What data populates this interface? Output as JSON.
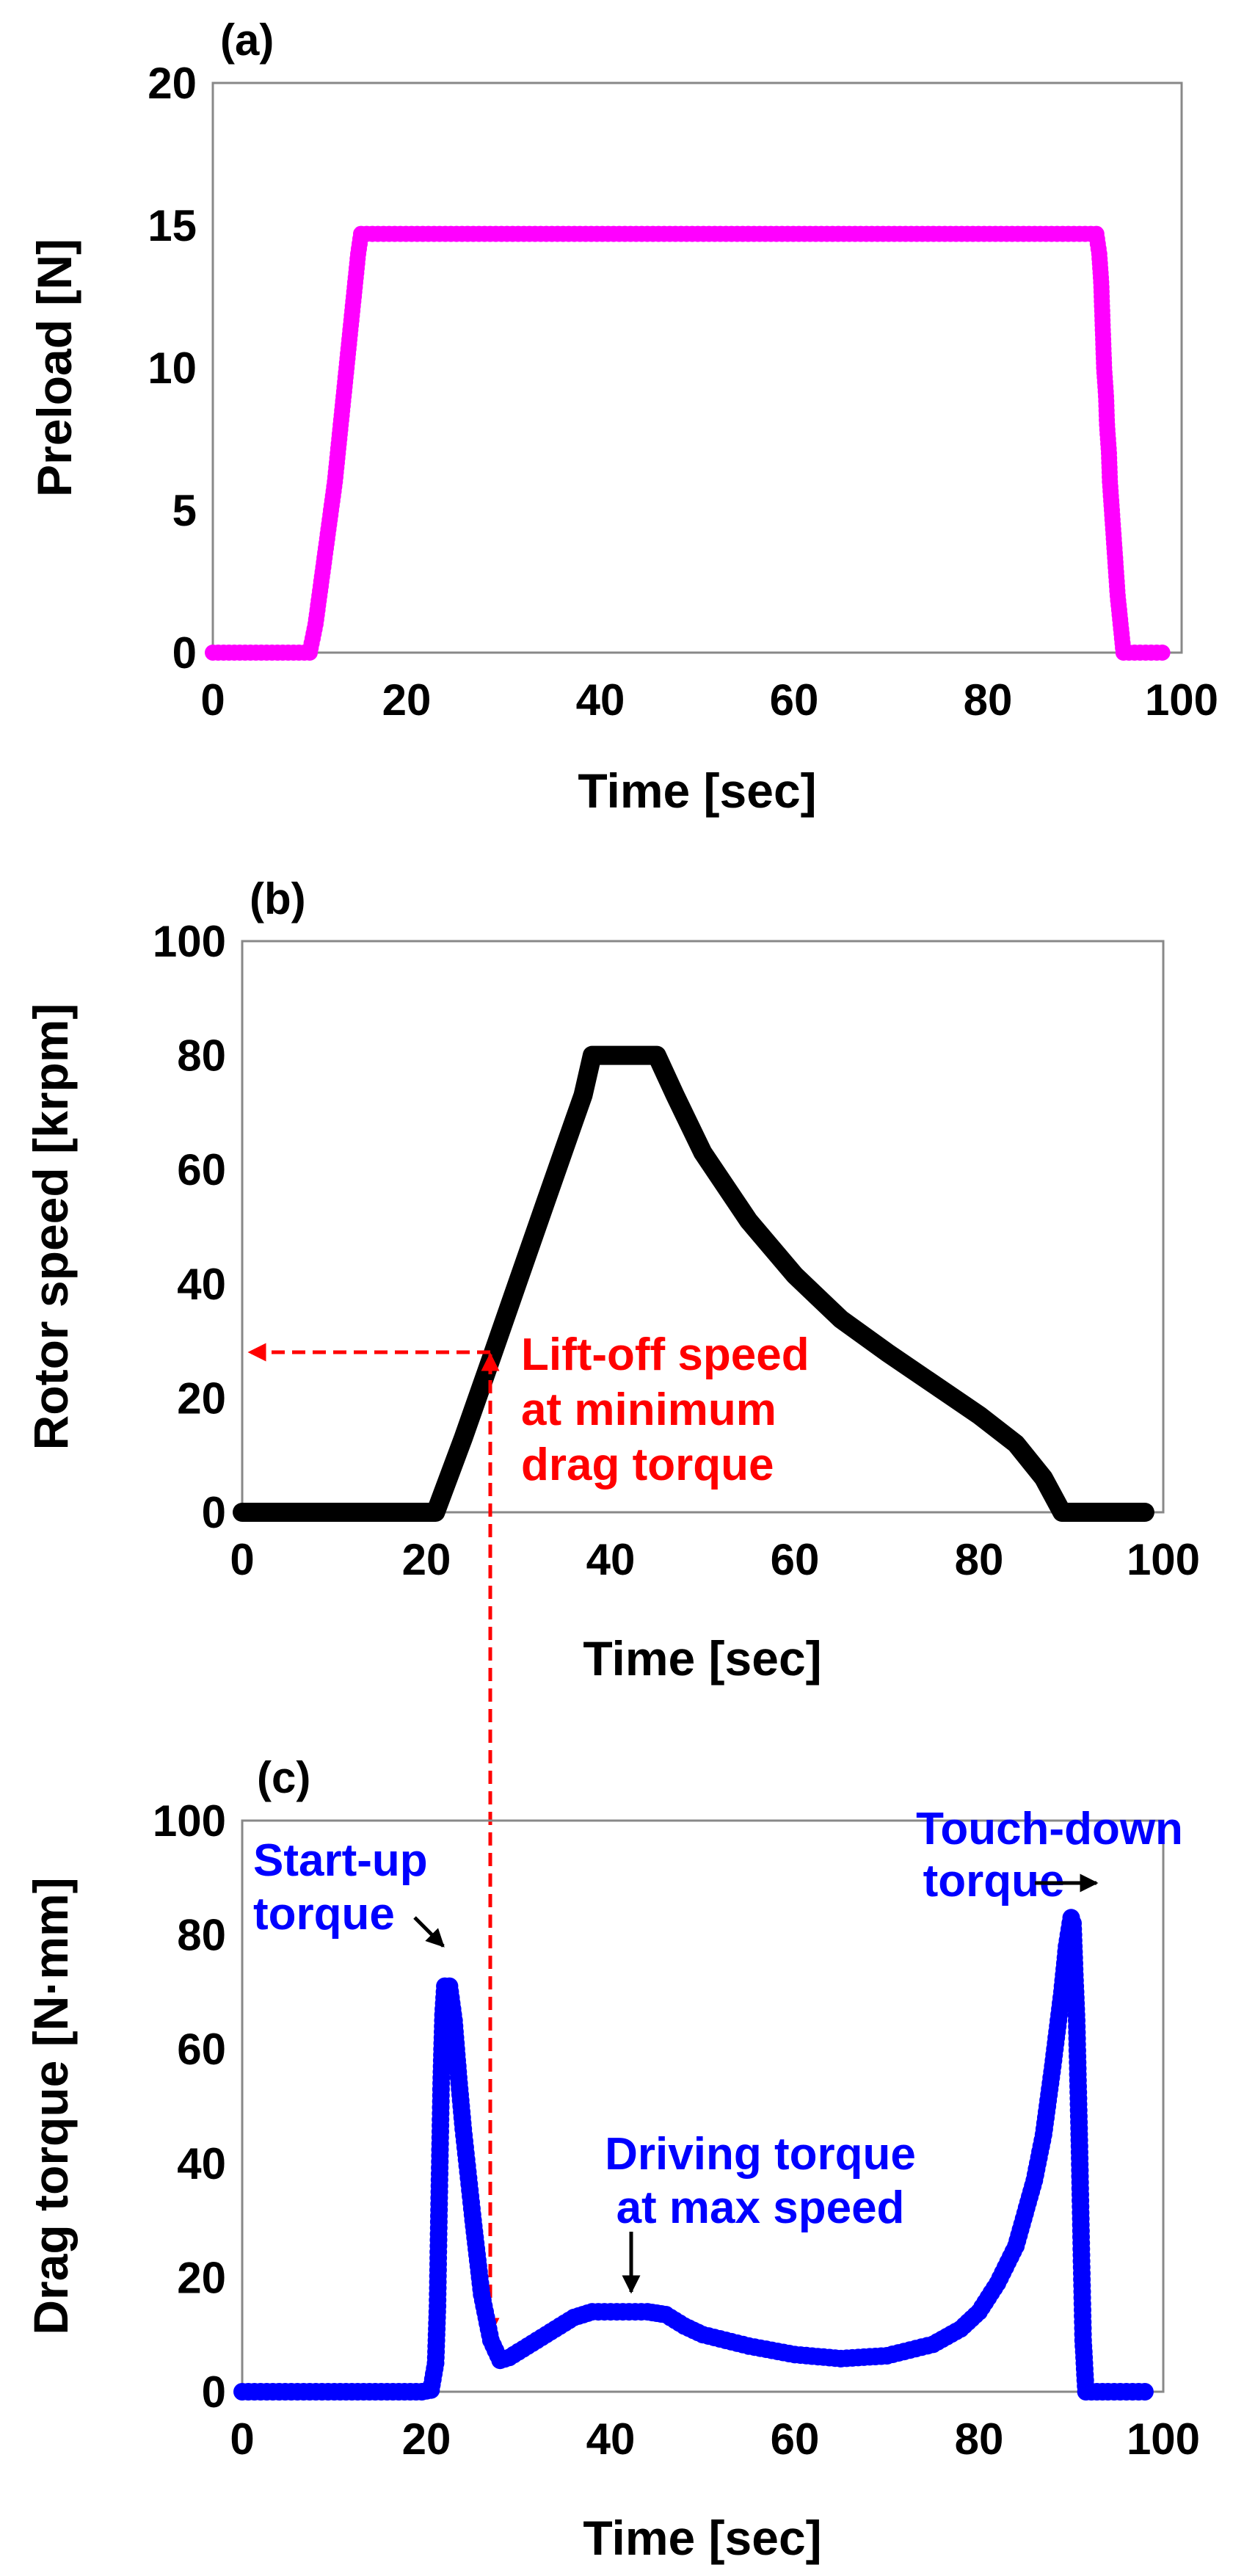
{
  "chart_data": [
    {
      "panel": "(a)",
      "type": "scatter",
      "xlabel": "Time [sec]",
      "ylabel": "Preload [N]",
      "xlim": [
        0,
        100
      ],
      "ylim": [
        0,
        20
      ],
      "xticks": [
        "0",
        "20",
        "40",
        "60",
        "80",
        "100"
      ],
      "yticks": [
        "0",
        "5",
        "10",
        "15",
        "20"
      ],
      "grid": false,
      "series": [
        {
          "name": "Preload",
          "color": "#ff00ff",
          "points": [
            [
              0,
              0
            ],
            [
              10,
              0
            ],
            [
              10.6,
              1
            ],
            [
              11,
              2
            ],
            [
              11.4,
              3
            ],
            [
              11.8,
              4
            ],
            [
              12.2,
              5
            ],
            [
              12.6,
              6
            ],
            [
              12.9,
              7
            ],
            [
              13.2,
              8
            ],
            [
              13.5,
              9
            ],
            [
              13.8,
              10
            ],
            [
              14.1,
              11
            ],
            [
              14.4,
              12
            ],
            [
              14.7,
              13
            ],
            [
              15,
              14
            ],
            [
              15.3,
              14.7
            ],
            [
              91.2,
              14.7
            ],
            [
              91.5,
              14
            ],
            [
              91.7,
              13
            ],
            [
              91.8,
              12
            ],
            [
              91.9,
              11
            ],
            [
              92,
              10
            ],
            [
              92.2,
              9
            ],
            [
              92.3,
              8
            ],
            [
              92.5,
              7
            ],
            [
              92.6,
              6
            ],
            [
              92.8,
              5
            ],
            [
              93,
              4
            ],
            [
              93.2,
              3
            ],
            [
              93.4,
              2
            ],
            [
              93.7,
              1
            ],
            [
              94,
              0
            ],
            [
              98,
              0
            ]
          ]
        }
      ]
    },
    {
      "panel": "(b)",
      "type": "line",
      "xlabel": "Time [sec]",
      "ylabel": "Rotor speed [krpm]",
      "xlim": [
        0,
        100
      ],
      "ylim": [
        0,
        100
      ],
      "xticks": [
        "0",
        "20",
        "40",
        "60",
        "80",
        "100"
      ],
      "yticks": [
        "0",
        "20",
        "40",
        "60",
        "80",
        "100"
      ],
      "grid": false,
      "series": [
        {
          "name": "Rotor speed",
          "color": "#000000",
          "points": [
            [
              0,
              0
            ],
            [
              21,
              0
            ],
            [
              24,
              13
            ],
            [
              27,
              26.8
            ],
            [
              30,
              40.7
            ],
            [
              33,
              54.6
            ],
            [
              36,
              68.4
            ],
            [
              37,
              73
            ],
            [
              38,
              80
            ],
            [
              45,
              80
            ],
            [
              47,
              73
            ],
            [
              50,
              63
            ],
            [
              55,
              51
            ],
            [
              60,
              41.5
            ],
            [
              65,
              33.8
            ],
            [
              70,
              28
            ],
            [
              75,
              22.5
            ],
            [
              80,
              17
            ],
            [
              84,
              12
            ],
            [
              87,
              6
            ],
            [
              89,
              0
            ],
            [
              98,
              0
            ]
          ]
        }
      ],
      "annotations": [
        {
          "text_lines": [
            "Lift-off speed",
            "at minimum",
            "drag torque"
          ],
          "color": "#ff0000",
          "x": 27,
          "y": 28.5
        }
      ]
    },
    {
      "panel": "(c)",
      "type": "scatter",
      "xlabel": "Time [sec]",
      "ylabel": "Drag torque [N·mm]",
      "xlim": [
        0,
        100
      ],
      "ylim": [
        0,
        100
      ],
      "xticks": [
        "0",
        "20",
        "40",
        "60",
        "80",
        "100"
      ],
      "yticks": [
        "0",
        "20",
        "40",
        "60",
        "80",
        "100"
      ],
      "grid": false,
      "series": [
        {
          "name": "Drag torque",
          "color": "#0000ff",
          "points": [
            [
              0,
              0
            ],
            [
              10,
              0
            ],
            [
              17,
              0
            ],
            [
              19.5,
              0
            ],
            [
              20.5,
              0.3
            ],
            [
              21,
              5
            ],
            [
              21.2,
              15
            ],
            [
              21.4,
              35
            ],
            [
              21.6,
              54
            ],
            [
              21.8,
              66
            ],
            [
              22,
              71
            ],
            [
              22.5,
              71
            ],
            [
              23,
              65
            ],
            [
              23.5,
              55
            ],
            [
              24,
              46
            ],
            [
              25,
              31
            ],
            [
              26,
              17
            ],
            [
              27,
              9
            ],
            [
              28,
              5.5
            ],
            [
              29,
              6
            ],
            [
              30,
              7
            ],
            [
              32,
              9
            ],
            [
              34,
              11
            ],
            [
              36,
              13
            ],
            [
              38,
              14
            ],
            [
              40,
              14
            ],
            [
              42,
              14
            ],
            [
              44,
              14
            ],
            [
              46,
              13.5
            ],
            [
              48,
              11.5
            ],
            [
              50,
              10
            ],
            [
              55,
              8
            ],
            [
              60,
              6.5
            ],
            [
              65,
              5.8
            ],
            [
              70,
              6.3
            ],
            [
              75,
              8.3
            ],
            [
              78,
              11
            ],
            [
              80,
              14
            ],
            [
              82,
              19
            ],
            [
              84,
              25.5
            ],
            [
              86,
              37
            ],
            [
              87,
              45
            ],
            [
              88,
              57
            ],
            [
              89,
              70
            ],
            [
              89.5,
              78
            ],
            [
              90,
              83
            ],
            [
              90.2,
              82
            ],
            [
              90.4,
              73
            ],
            [
              90.6,
              65
            ],
            [
              90.9,
              43
            ],
            [
              91.1,
              25
            ],
            [
              91.3,
              9
            ],
            [
              91.6,
              0
            ],
            [
              94,
              0
            ],
            [
              98,
              0
            ]
          ]
        }
      ],
      "annotations": [
        {
          "text_lines": [
            "Start-up",
            "torque"
          ],
          "color": "#0000ff",
          "x": 22,
          "y": 71
        },
        {
          "text_lines": [
            "Driving torque",
            "at max speed"
          ],
          "color": "#0000ff",
          "x": 42,
          "y": 14
        },
        {
          "text_lines": [
            "Touch-down",
            "torque"
          ],
          "color": "#0000ff",
          "x": 90,
          "y": 83
        }
      ]
    }
  ]
}
